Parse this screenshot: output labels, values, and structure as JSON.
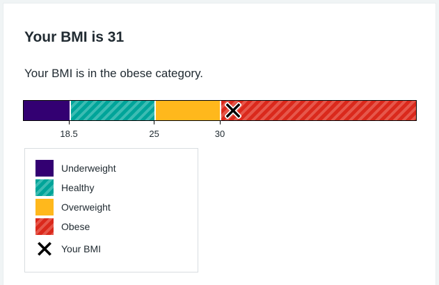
{
  "result": {
    "title": "Your BMI is 31",
    "description": "Your BMI is in the obese category.",
    "bmi_value": 31
  },
  "scale": {
    "min": 15,
    "max": 45,
    "ticks": [
      "18.5",
      "25",
      "30"
    ],
    "tick_values": [
      18.5,
      25,
      30
    ],
    "segments": [
      {
        "name": "Underweight",
        "from": 15,
        "to": 18.5,
        "color": "#330072"
      },
      {
        "name": "Healthy",
        "from": 18.5,
        "to": 25,
        "color": "#00a499"
      },
      {
        "name": "Overweight",
        "from": 25,
        "to": 30,
        "color": "#ffb81c"
      },
      {
        "name": "Obese",
        "from": 30,
        "to": 45,
        "color": "#da291c"
      }
    ]
  },
  "legend": {
    "items": [
      {
        "label": "Underweight",
        "swatch": "underweight"
      },
      {
        "label": "Healthy",
        "swatch": "healthy"
      },
      {
        "label": "Overweight",
        "swatch": "overweight"
      },
      {
        "label": "Obese",
        "swatch": "obese"
      }
    ],
    "marker_label": "Your BMI",
    "marker_icon": "cross-icon"
  }
}
